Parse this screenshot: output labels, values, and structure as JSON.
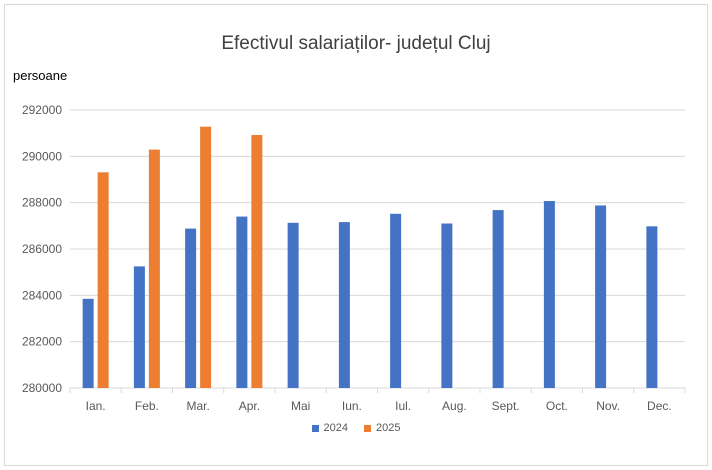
{
  "chart_data": {
    "type": "bar",
    "title": "Efectivul salariaților- județul Cluj",
    "xlabel": "",
    "ylabel": "persoane",
    "ylim": [
      280000,
      292000
    ],
    "yticks": [
      280000,
      282000,
      284000,
      286000,
      288000,
      290000,
      292000
    ],
    "categories": [
      "Ian.",
      "Feb.",
      "Mar.",
      "Apr.",
      "Mai",
      "Iun.",
      "Iul.",
      "Aug.",
      "Sept.",
      "Oct.",
      "Nov.",
      "Dec."
    ],
    "series": [
      {
        "name": "2024",
        "color": "#4472c4",
        "values": [
          283850,
          285250,
          286880,
          287400,
          287130,
          287160,
          287520,
          287100,
          287680,
          288070,
          287880,
          286980
        ]
      },
      {
        "name": "2025",
        "color": "#ed7d31",
        "values": [
          289310,
          290290,
          291280,
          290920,
          null,
          null,
          null,
          null,
          null,
          null,
          null,
          null
        ]
      }
    ],
    "grid": true,
    "legend_position": "bottom"
  }
}
